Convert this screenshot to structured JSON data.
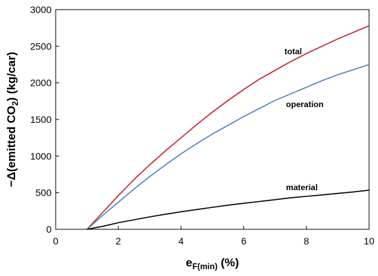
{
  "chart_data": {
    "type": "line",
    "xlabel": {
      "main": "e",
      "sub": "F(min)",
      "unit": "(%)"
    },
    "ylabel": {
      "prefix": "−Δ(emitted CO",
      "sub": "2",
      "suffix": ") (kg/car)"
    },
    "xlim": [
      0,
      10
    ],
    "ylim": [
      0,
      3000
    ],
    "xticks": [
      0,
      2,
      4,
      6,
      8,
      10
    ],
    "yticks": [
      0,
      500,
      1000,
      1500,
      2000,
      2500,
      3000
    ],
    "grid": false,
    "series": [
      {
        "name": "total",
        "color": "#c0202a",
        "x": [
          1,
          1.5,
          2,
          2.5,
          3,
          3.5,
          4,
          4.5,
          5,
          5.5,
          6,
          6.5,
          7,
          7.5,
          8,
          8.5,
          9,
          9.5,
          10
        ],
        "y": [
          0,
          230,
          460,
          680,
          880,
          1070,
          1250,
          1430,
          1600,
          1760,
          1910,
          2050,
          2170,
          2290,
          2400,
          2500,
          2600,
          2690,
          2780
        ]
      },
      {
        "name": "operation",
        "color": "#4a7fc4",
        "x": [
          1,
          1.5,
          2,
          2.5,
          3,
          3.5,
          4,
          4.5,
          5,
          5.5,
          6,
          6.5,
          7,
          7.5,
          8,
          8.5,
          9,
          9.5,
          10
        ],
        "y": [
          0,
          190,
          370,
          550,
          720,
          880,
          1030,
          1170,
          1300,
          1420,
          1540,
          1650,
          1760,
          1850,
          1940,
          2030,
          2110,
          2180,
          2250
        ]
      },
      {
        "name": "material",
        "color": "#000000",
        "x": [
          1,
          1.5,
          2,
          2.5,
          3,
          3.5,
          4,
          4.5,
          5,
          5.5,
          6,
          6.5,
          7,
          7.5,
          8,
          8.5,
          9,
          9.5,
          10
        ],
        "y": [
          0,
          40,
          90,
          130,
          170,
          205,
          240,
          270,
          300,
          330,
          355,
          380,
          405,
          430,
          450,
          470,
          490,
          510,
          535
        ]
      }
    ],
    "annotations": [
      {
        "text": "total",
        "x": 7.3,
        "y": 2390
      },
      {
        "text": "operation",
        "x": 7.35,
        "y": 1670
      },
      {
        "text": "material",
        "x": 7.35,
        "y": 535
      }
    ]
  }
}
